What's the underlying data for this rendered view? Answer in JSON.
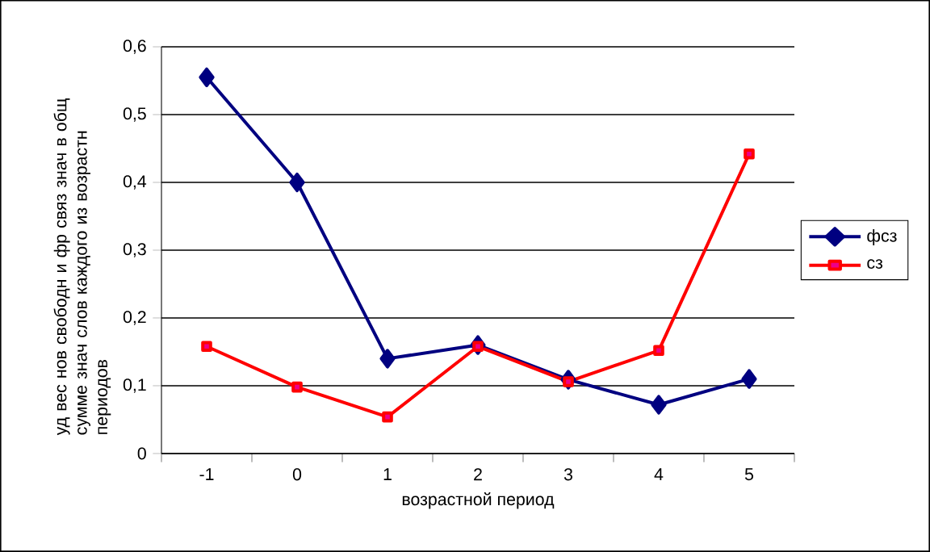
{
  "chart_data": {
    "type": "line",
    "xlabel": "возрастной период",
    "ylabel": "уд вес нов свободн и фр связ знач в общ сумме знач слов каждого из возрастн периодов",
    "categories": [
      "-1",
      "0",
      "1",
      "2",
      "3",
      "4",
      "5"
    ],
    "series": [
      {
        "name": "фсз",
        "color": "#000080",
        "marker": "diamond",
        "values": [
          0.555,
          0.4,
          0.14,
          0.16,
          0.109,
          0.072,
          0.11
        ]
      },
      {
        "name": "сз",
        "color": "#ff0000",
        "marker": "square",
        "values": [
          0.158,
          0.098,
          0.054,
          0.158,
          0.106,
          0.152,
          0.442
        ]
      }
    ],
    "ylim": [
      0,
      0.6
    ],
    "yticks": [
      {
        "value": 0,
        "label": "0"
      },
      {
        "value": 0.1,
        "label": "0,1"
      },
      {
        "value": 0.2,
        "label": "0,2"
      },
      {
        "value": 0.3,
        "label": "0,3"
      },
      {
        "value": 0.4,
        "label": "0,4"
      },
      {
        "value": 0.5,
        "label": "0,5"
      },
      {
        "value": 0.6,
        "label": "0,6"
      }
    ],
    "grid": "y",
    "legend": "right",
    "line_style": "solid"
  }
}
